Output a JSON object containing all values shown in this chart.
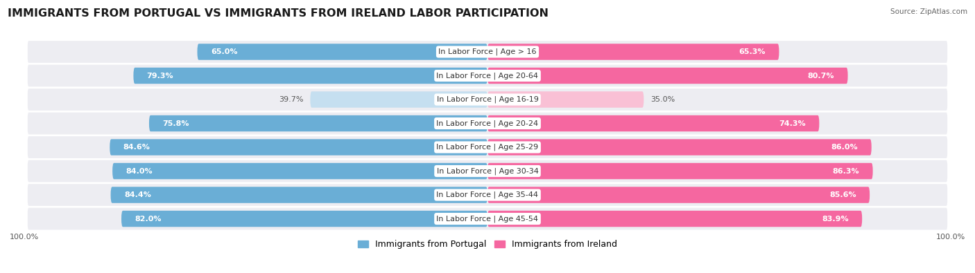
{
  "title": "IMMIGRANTS FROM PORTUGAL VS IMMIGRANTS FROM IRELAND LABOR PARTICIPATION",
  "source": "Source: ZipAtlas.com",
  "categories": [
    "In Labor Force | Age > 16",
    "In Labor Force | Age 20-64",
    "In Labor Force | Age 16-19",
    "In Labor Force | Age 20-24",
    "In Labor Force | Age 25-29",
    "In Labor Force | Age 30-34",
    "In Labor Force | Age 35-44",
    "In Labor Force | Age 45-54"
  ],
  "portugal_values": [
    65.0,
    79.3,
    39.7,
    75.8,
    84.6,
    84.0,
    84.4,
    82.0
  ],
  "ireland_values": [
    65.3,
    80.7,
    35.0,
    74.3,
    86.0,
    86.3,
    85.6,
    83.9
  ],
  "portugal_color_dark": "#6aaed6",
  "portugal_color_light": "#c5dff0",
  "ireland_color_dark": "#f567a0",
  "ireland_color_light": "#f9c0d5",
  "bg_row_color": "#ededf2",
  "legend_portugal": "Immigrants from Portugal",
  "legend_ireland": "Immigrants from Ireland",
  "max_val": 100.0,
  "title_fontsize": 11.5,
  "label_fontsize": 8.0,
  "value_fontsize": 8.0
}
